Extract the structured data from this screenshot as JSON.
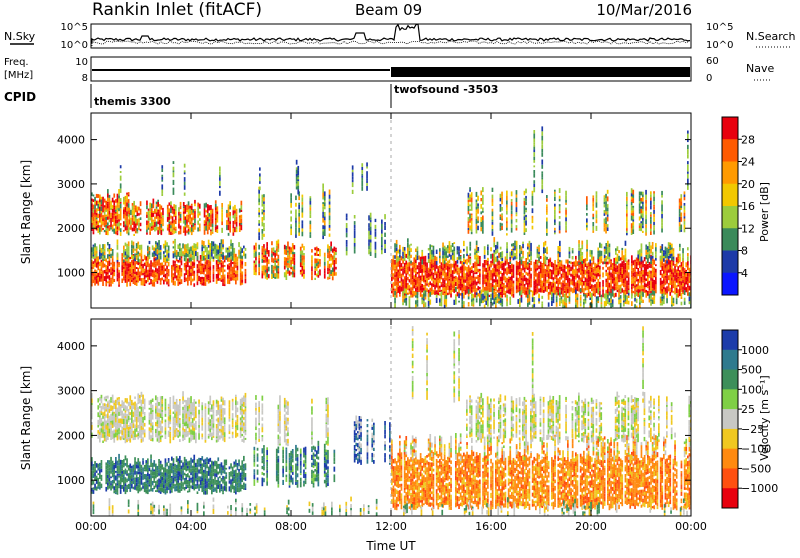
{
  "header": {
    "station": "Rankin Inlet (fitACF)",
    "beam": "Beam 09",
    "date": "10/Mar/2016"
  },
  "strip_labels": {
    "nsky": "N.Sky",
    "nsky_top": "10^5",
    "nsky_bottom": "10^0",
    "nsearch": "N.Search",
    "nsearch_top": "10^5",
    "nsearch_bottom": "10^0",
    "freq_line1": "Freq.",
    "freq_line2": "[MHz]",
    "freq_top": "10",
    "freq_bottom": "8",
    "nave": "Nave",
    "nave_top": "60",
    "nave_bottom": "0",
    "cpid": "CPID",
    "cpid_first": "themis 3300",
    "cpid_second": "twofsound -3503"
  },
  "chart_data": [
    {
      "type": "heatmap",
      "panel": "power",
      "ylabel": "Slant Range [km]",
      "xlabel": "",
      "x_ticks": [
        "00:00",
        "04:00",
        "08:00",
        "12:00",
        "16:00",
        "20:00",
        "00:00"
      ],
      "y_ticks": [
        1000,
        2000,
        3000,
        4000
      ],
      "ylim": [
        200,
        4600
      ],
      "colorbar_label": "Power [dB]",
      "colorbar_ticks": [
        28,
        24,
        20,
        16,
        12,
        8,
        4
      ],
      "colorbar_colors": [
        "#e8000e",
        "#ff5a00",
        "#ff9a00",
        "#f2c800",
        "#9ccc3c",
        "#3a8a5a",
        "#1d3aa8",
        "#0b16ff"
      ]
    },
    {
      "type": "heatmap",
      "panel": "velocity",
      "ylabel": "Slant Range [km]",
      "xlabel": "Time UT",
      "x_ticks": [
        "00:00",
        "04:00",
        "08:00",
        "12:00",
        "16:00",
        "20:00",
        "00:00"
      ],
      "y_ticks": [
        1000,
        2000,
        3000,
        4000
      ],
      "ylim": [
        200,
        4600
      ],
      "colorbar_label": "Velocity [m s⁻¹]",
      "colorbar_ticks": [
        "1000",
        "500",
        "100",
        "25",
        "−25",
        "−100",
        "−500",
        "−1000"
      ],
      "colorbar_colors": [
        "#1c3caa",
        "#2f7a8e",
        "#3d8f5a",
        "#7fcf45",
        "#c8c8c4",
        "#f0c820",
        "#ff8a10",
        "#ff5010",
        "#e8000e"
      ]
    }
  ]
}
